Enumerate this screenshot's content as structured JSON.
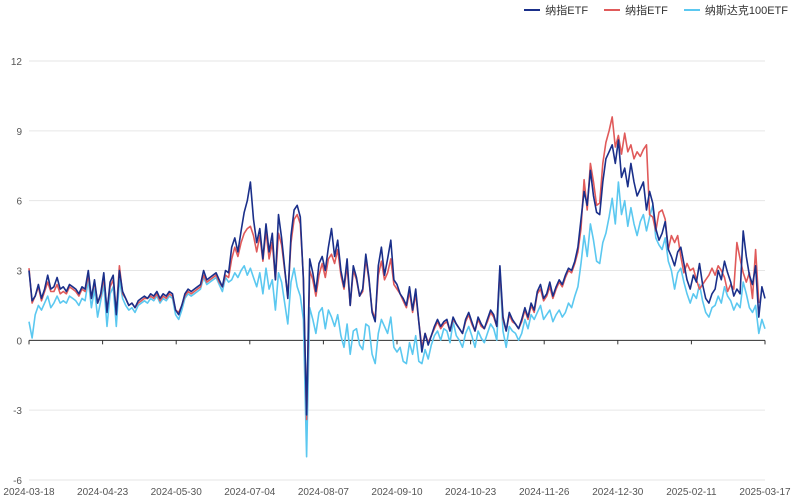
{
  "chart_data": {
    "type": "line",
    "x_ticks": [
      "2024-03-18",
      "2024-04-23",
      "2024-05-30",
      "2024-07-04",
      "2024-08-07",
      "2024-09-10",
      "2024-10-23",
      "2024-11-26",
      "2024-12-30",
      "2025-02-11",
      "2025-03-17"
    ],
    "ylim": [
      -6,
      12
    ],
    "y_ticks": [
      -6,
      -3,
      0,
      3,
      6,
      9,
      12
    ],
    "grid": true,
    "legend_position": "top-right",
    "series": [
      {
        "name": "纳指ETF",
        "color": "#1a2f8a",
        "values": [
          3.0,
          1.7,
          1.9,
          2.4,
          1.8,
          2.2,
          2.8,
          2.2,
          2.3,
          2.7,
          2.2,
          2.3,
          2.1,
          2.4,
          2.3,
          2.2,
          2.0,
          2.3,
          2.2,
          3.0,
          1.8,
          2.6,
          1.6,
          2.0,
          2.9,
          1.2,
          2.5,
          2.8,
          1.1,
          3.0,
          2.1,
          1.8,
          1.5,
          1.6,
          1.4,
          1.7,
          1.8,
          1.9,
          1.8,
          2.0,
          1.9,
          2.1,
          1.8,
          2.0,
          1.9,
          2.1,
          2.0,
          1.3,
          1.1,
          1.5,
          2.0,
          2.2,
          2.1,
          2.2,
          2.3,
          2.4,
          3.0,
          2.6,
          2.7,
          2.8,
          2.9,
          2.6,
          2.3,
          3.0,
          2.9,
          4.0,
          4.4,
          3.8,
          4.7,
          5.5,
          6.0,
          6.8,
          5.2,
          4.2,
          4.8,
          3.5,
          5.0,
          3.8,
          4.6,
          2.6,
          5.4,
          4.4,
          3.1,
          1.8,
          4.5,
          5.6,
          5.8,
          5.3,
          2.6,
          -3.2,
          3.5,
          2.9,
          2.1,
          3.3,
          3.6,
          3.0,
          4.0,
          4.8,
          3.6,
          4.3,
          3.0,
          2.3,
          3.5,
          1.5,
          3.2,
          2.7,
          1.9,
          2.2,
          3.7,
          2.7,
          1.2,
          0.8,
          3.2,
          4.0,
          2.8,
          3.5,
          4.3,
          2.6,
          2.4,
          2.0,
          1.8,
          1.5,
          2.3,
          1.3,
          2.2,
          0.8,
          -0.5,
          0.3,
          -0.2,
          0.2,
          0.6,
          0.9,
          0.6,
          0.8,
          0.9,
          0.4,
          1.0,
          0.7,
          0.5,
          0.3,
          0.9,
          1.2,
          0.8,
          0.4,
          1.0,
          0.7,
          0.5,
          0.9,
          1.3,
          1.1,
          0.6,
          3.2,
          1.0,
          0.4,
          1.2,
          0.9,
          0.7,
          0.5,
          0.9,
          1.4,
          1.0,
          1.6,
          1.3,
          2.1,
          2.4,
          1.8,
          2.0,
          2.5,
          1.9,
          2.3,
          2.6,
          2.4,
          2.8,
          3.1,
          3.0,
          3.4,
          4.0,
          5.2,
          6.4,
          5.8,
          7.3,
          6.2,
          5.5,
          5.4,
          6.8,
          7.8,
          8.1,
          8.4,
          7.6,
          8.6,
          7.0,
          7.4,
          6.6,
          7.6,
          6.8,
          6.2,
          6.5,
          6.8,
          5.6,
          6.4,
          5.9,
          4.8,
          4.3,
          4.6,
          5.1,
          3.9,
          3.6,
          3.2,
          3.8,
          4.0,
          3.3,
          2.6,
          2.2,
          2.8,
          2.5,
          3.3,
          2.4,
          1.8,
          1.6,
          2.0,
          2.2,
          3.0,
          2.6,
          3.4,
          2.9,
          2.5,
          1.9,
          2.2,
          2.0,
          4.7,
          3.6,
          2.8,
          2.4,
          3.2,
          1.0,
          2.3,
          1.8
        ]
      },
      {
        "name": "纳指ETF",
        "color": "#e05a5a",
        "values": [
          3.1,
          1.6,
          1.9,
          2.3,
          1.7,
          2.1,
          2.5,
          2.1,
          2.1,
          2.4,
          2.0,
          2.1,
          2.0,
          2.3,
          2.2,
          2.1,
          1.9,
          2.2,
          2.1,
          2.8,
          1.8,
          2.5,
          1.6,
          1.9,
          2.7,
          1.3,
          2.3,
          2.6,
          1.2,
          3.2,
          2.0,
          1.8,
          1.5,
          1.6,
          1.4,
          1.6,
          1.7,
          1.8,
          1.8,
          1.9,
          1.8,
          2.0,
          1.7,
          1.9,
          1.8,
          2.0,
          1.9,
          1.3,
          1.2,
          1.5,
          1.9,
          2.1,
          2.0,
          2.1,
          2.2,
          2.3,
          2.8,
          2.5,
          2.6,
          2.7,
          2.8,
          2.5,
          2.3,
          2.8,
          2.7,
          3.5,
          4.0,
          3.6,
          4.2,
          4.6,
          4.8,
          4.9,
          4.5,
          3.8,
          4.5,
          3.4,
          4.7,
          3.5,
          4.2,
          2.6,
          4.6,
          4.1,
          3.0,
          1.9,
          4.2,
          5.2,
          5.4,
          5.0,
          2.7,
          -3.4,
          3.0,
          2.6,
          1.9,
          2.8,
          3.3,
          2.7,
          3.5,
          3.7,
          3.3,
          3.9,
          2.8,
          2.2,
          3.2,
          1.5,
          3.0,
          2.6,
          1.9,
          2.1,
          3.5,
          2.6,
          1.3,
          0.9,
          2.8,
          3.4,
          2.6,
          2.9,
          3.5,
          2.4,
          2.2,
          2.0,
          1.7,
          1.4,
          2.1,
          1.2,
          2.0,
          0.8,
          -0.3,
          0.3,
          -0.1,
          0.2,
          0.5,
          0.8,
          0.5,
          0.7,
          0.8,
          0.4,
          0.9,
          0.7,
          0.5,
          0.3,
          0.8,
          1.1,
          0.7,
          0.4,
          0.9,
          0.6,
          0.5,
          0.8,
          1.2,
          1.0,
          0.6,
          3.0,
          0.9,
          0.4,
          1.1,
          0.8,
          0.7,
          0.5,
          0.8,
          1.3,
          0.9,
          1.5,
          1.2,
          2.0,
          2.2,
          1.7,
          1.9,
          2.3,
          1.8,
          2.2,
          2.5,
          2.3,
          2.7,
          3.0,
          2.9,
          3.3,
          3.8,
          4.8,
          6.9,
          5.6,
          7.6,
          6.8,
          5.8,
          5.9,
          7.6,
          8.5,
          9.0,
          9.6,
          8.3,
          8.8,
          8.0,
          8.9,
          8.1,
          8.4,
          7.8,
          8.1,
          7.9,
          8.2,
          8.4,
          5.4,
          5.3,
          4.7,
          5.5,
          5.6,
          5.2,
          3.9,
          4.5,
          4.2,
          4.5,
          3.6,
          2.9,
          3.3,
          3.0,
          3.1,
          2.6,
          2.2,
          2.4,
          2.6,
          2.8,
          3.1,
          2.8,
          3.2,
          3.0,
          2.7,
          2.1,
          2.4,
          2.2,
          4.2,
          3.5,
          2.9,
          2.5,
          2.9,
          1.8,
          3.9,
          1.6
        ]
      },
      {
        "name": "纳斯达克100ETF",
        "color": "#5bc8f0",
        "values": [
          0.8,
          0.1,
          1.1,
          1.5,
          1.3,
          1.6,
          1.9,
          1.4,
          1.6,
          1.9,
          1.6,
          1.7,
          1.6,
          1.9,
          1.8,
          1.7,
          1.5,
          1.8,
          1.7,
          2.6,
          1.4,
          2.2,
          1.0,
          1.7,
          2.4,
          0.6,
          2.0,
          2.3,
          0.6,
          2.6,
          1.8,
          1.5,
          1.3,
          1.4,
          1.2,
          1.5,
          1.6,
          1.7,
          1.6,
          1.8,
          1.7,
          1.9,
          1.6,
          1.8,
          1.7,
          1.9,
          1.8,
          1.1,
          0.9,
          1.3,
          1.8,
          2.0,
          1.9,
          2.0,
          2.1,
          2.2,
          2.7,
          2.4,
          2.5,
          2.6,
          2.7,
          2.4,
          2.1,
          2.7,
          2.5,
          2.6,
          2.9,
          2.7,
          3.0,
          3.2,
          2.8,
          3.1,
          2.7,
          2.3,
          2.9,
          2.0,
          3.1,
          2.2,
          2.6,
          1.3,
          2.9,
          2.5,
          1.6,
          0.7,
          2.5,
          3.1,
          2.3,
          1.9,
          0.9,
          -5.0,
          1.4,
          0.9,
          0.3,
          1.2,
          1.4,
          0.5,
          1.3,
          1.0,
          0.6,
          1.1,
          0.2,
          -0.3,
          0.7,
          -0.6,
          0.4,
          0.5,
          -0.2,
          -0.4,
          0.7,
          0.6,
          -0.6,
          -1.0,
          0.3,
          0.9,
          0.6,
          0.3,
          1.0,
          -0.3,
          -0.5,
          -0.3,
          -0.9,
          -1.0,
          -0.1,
          -0.6,
          0.2,
          -0.9,
          -1.0,
          -0.4,
          -0.8,
          -0.2,
          0.2,
          0.4,
          0.0,
          0.5,
          0.4,
          -0.1,
          0.8,
          0.2,
          0.0,
          -0.3,
          0.3,
          0.6,
          0.2,
          -0.3,
          0.4,
          0.1,
          -0.1,
          0.3,
          0.7,
          0.5,
          0.0,
          2.9,
          0.4,
          -0.3,
          0.6,
          0.4,
          0.3,
          0.0,
          0.3,
          0.9,
          0.5,
          1.1,
          0.9,
          1.2,
          1.5,
          0.9,
          1.1,
          1.3,
          0.8,
          1.1,
          1.3,
          1.0,
          1.2,
          1.6,
          1.4,
          1.9,
          2.3,
          3.3,
          4.5,
          3.6,
          5.0,
          4.3,
          3.4,
          3.3,
          4.2,
          4.6,
          5.3,
          6.1,
          5.0,
          6.8,
          5.4,
          6.0,
          4.9,
          5.7,
          5.0,
          4.5,
          5.1,
          5.4,
          4.7,
          5.3,
          5.8,
          4.4,
          4.1,
          3.9,
          4.4,
          3.4,
          3.0,
          2.2,
          2.9,
          3.1,
          2.5,
          2.0,
          1.6,
          2.0,
          1.8,
          2.4,
          1.7,
          1.2,
          1.0,
          1.4,
          1.5,
          1.9,
          1.6,
          2.3,
          1.9,
          1.7,
          1.3,
          1.6,
          1.4,
          2.5,
          2.0,
          1.4,
          1.2,
          1.5,
          0.3,
          0.9,
          0.5
        ]
      }
    ]
  }
}
